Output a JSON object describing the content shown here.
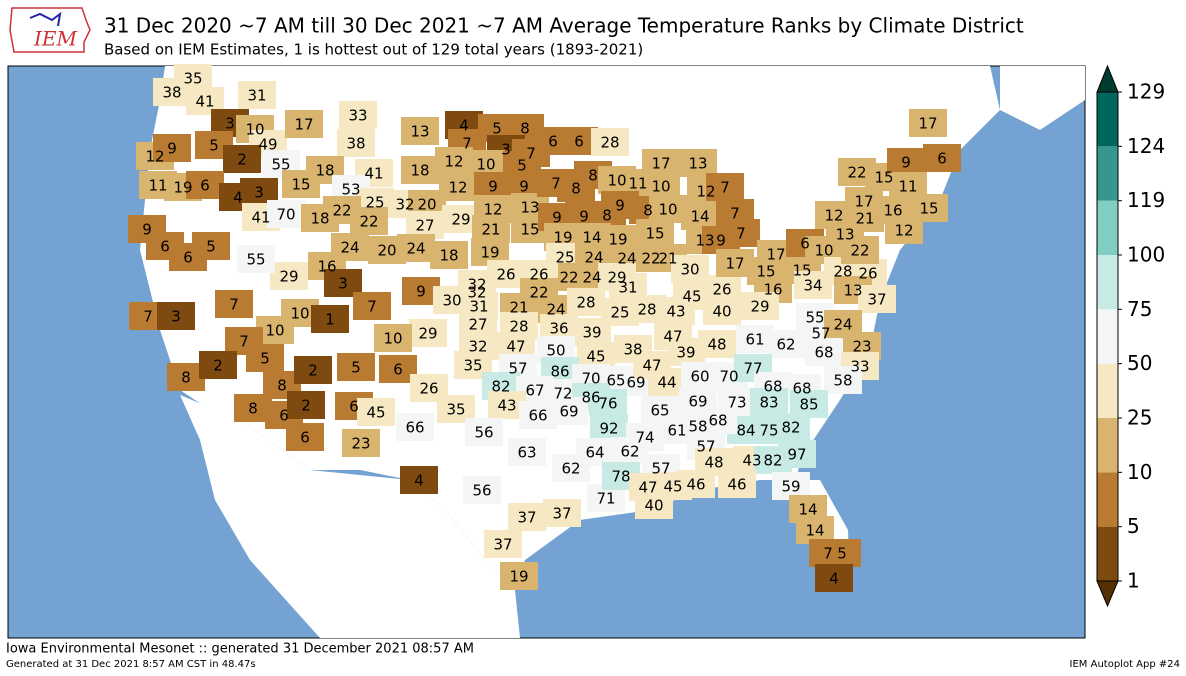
{
  "header": {
    "logo": "IEM",
    "title": "31 Dec 2020 ~7 AM till 30 Dec 2021 ~7 AM Average Temperature Ranks by Climate District",
    "subtitle": "Based on IEM Estimates, 1 is hottest out of 129 total years (1893-2021)"
  },
  "map": {
    "districts": [
      35,
      38,
      41,
      31,
      3,
      10,
      49,
      5,
      2,
      55,
      12,
      9,
      11,
      19,
      6,
      4,
      3,
      15,
      41,
      70,
      17,
      33,
      38,
      13,
      18,
      41,
      18,
      53,
      25,
      32,
      20,
      18,
      22,
      22,
      27,
      29,
      24,
      20,
      24,
      18,
      19,
      16,
      29,
      9,
      6,
      5,
      6,
      55,
      4,
      5,
      8,
      7,
      3,
      7,
      12,
      10,
      5,
      12,
      9,
      9,
      12,
      13,
      21,
      15,
      6,
      6,
      28,
      7,
      8,
      8,
      9,
      9,
      8,
      10,
      11,
      10,
      9,
      8,
      10,
      17,
      13,
      14,
      12,
      7,
      7,
      19,
      14,
      19,
      15,
      13,
      9,
      7,
      25,
      24,
      24,
      22,
      21,
      22,
      24,
      29,
      32,
      26,
      26,
      32,
      22,
      3,
      9,
      7,
      30,
      31,
      21,
      24,
      28,
      31,
      30,
      45,
      26,
      17,
      15,
      15,
      17,
      6,
      10,
      13,
      12,
      17,
      21,
      16,
      15,
      12,
      22,
      15,
      9,
      6,
      11,
      17,
      16,
      28,
      26,
      22,
      34,
      13,
      37,
      10,
      1,
      7,
      3,
      7,
      10,
      7,
      29,
      10,
      27,
      28,
      36,
      39,
      25,
      28,
      43,
      40,
      29,
      55,
      57,
      24,
      61,
      62,
      47,
      68,
      23,
      33,
      32,
      47,
      50,
      45,
      38,
      39,
      48,
      5,
      8,
      2,
      8,
      2,
      5,
      6,
      8,
      6,
      2,
      6,
      6,
      45,
      26,
      35,
      57,
      86,
      82,
      67,
      72,
      70,
      65,
      69,
      47,
      44,
      60,
      70,
      77,
      68,
      68,
      58,
      86,
      85,
      69,
      73,
      83,
      43,
      66,
      69,
      76,
      65,
      92,
      84,
      75,
      82,
      61,
      58,
      68,
      74,
      35,
      66,
      23,
      56,
      63,
      62,
      64,
      62,
      57,
      43,
      82,
      97,
      48,
      57,
      4,
      56,
      71,
      78,
      47,
      45,
      46,
      46,
      59,
      40,
      37,
      37,
      14,
      14,
      37,
      7,
      5,
      19,
      4
    ],
    "colorbar": {
      "levels": [
        1,
        5,
        10,
        25,
        50,
        75,
        100,
        119,
        124,
        129
      ],
      "colors": [
        "#7f4a10",
        "#b97a32",
        "#d9b46e",
        "#f6e8c3",
        "#f4f5f5",
        "#c7eae5",
        "#80cdc1",
        "#35978f",
        "#01665e"
      ],
      "under_color": "#543005",
      "over_color": "#003c30"
    }
  },
  "footer": {
    "source": "Iowa Environmental Mesonet :: generated 31 December 2021 08:57 AM",
    "generated": "Generated at 31 Dec 2021 8:57 AM CST in 48.47s",
    "app": "IEM Autoplot App #24"
  }
}
